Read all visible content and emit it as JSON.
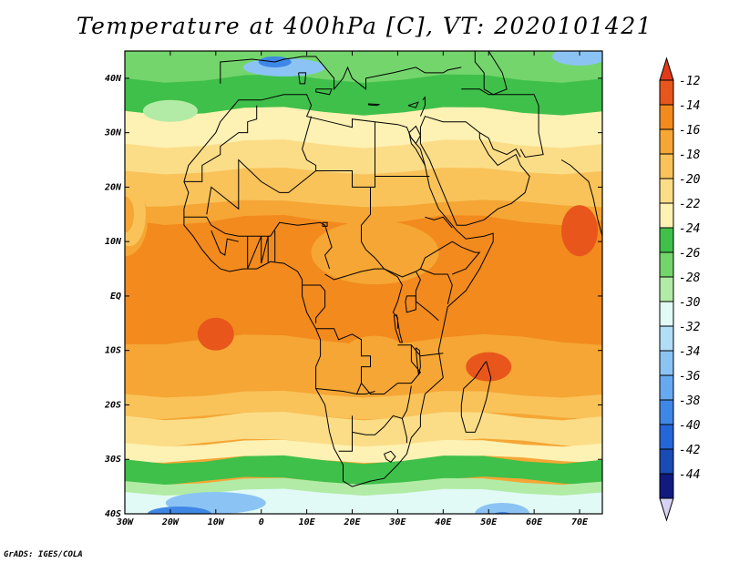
{
  "title": "Temperature at 400hPa [C], VT: 2020101421",
  "credit": "GrADS: IGES/COLA",
  "axes": {
    "lat_labels": [
      "40N",
      "30N",
      "20N",
      "10N",
      "EQ",
      "10S",
      "20S",
      "30S",
      "40S"
    ],
    "lon_labels": [
      "30W",
      "20W",
      "10W",
      "0",
      "10E",
      "20E",
      "30E",
      "40E",
      "50E",
      "60E",
      "70E"
    ],
    "lat_values": [
      40,
      30,
      20,
      10,
      0,
      -10,
      -20,
      -30,
      -40
    ],
    "lon_values": [
      -30,
      -20,
      -10,
      0,
      10,
      20,
      30,
      40,
      50,
      60,
      70
    ],
    "lon_range": [
      -30,
      75
    ],
    "lat_range": [
      -40,
      45
    ]
  },
  "colorbar": {
    "labels": [
      "-12",
      "-14",
      "-16",
      "-18",
      "-20",
      "-22",
      "-24",
      "-26",
      "-28",
      "-30",
      "-32",
      "-34",
      "-36",
      "-38",
      "-40",
      "-42",
      "-44"
    ],
    "colors": [
      "#E8561C",
      "#F28A1E",
      "#F5A634",
      "#F9C35A",
      "#FBDD88",
      "#FDF1B3",
      "#3FC04A",
      "#74D56C",
      "#B2EBA6",
      "#E1FAF6",
      "#B2DDF6",
      "#8BC4F4",
      "#66A9F0",
      "#3F87E6",
      "#2466D8",
      "#1A4BB4",
      "#12197F"
    ],
    "top_arrow_color": "#E23B1A",
    "bottom_arrow_color": "#D7D1F5"
  },
  "field_colors": {
    "warm_core": "#E8561C",
    "orange": "#F28A1E",
    "light_orange": "#F5A634",
    "amber": "#F9C35A",
    "pale_yellow": "#FBDD88",
    "cream": "#FDF1B3",
    "green": "#3FC04A",
    "mid_green": "#74D56C",
    "light_green": "#B2EBA6",
    "pale_cyan": "#E1FAF6",
    "light_blue": "#8BC4F4",
    "blue": "#3F87E6"
  }
}
